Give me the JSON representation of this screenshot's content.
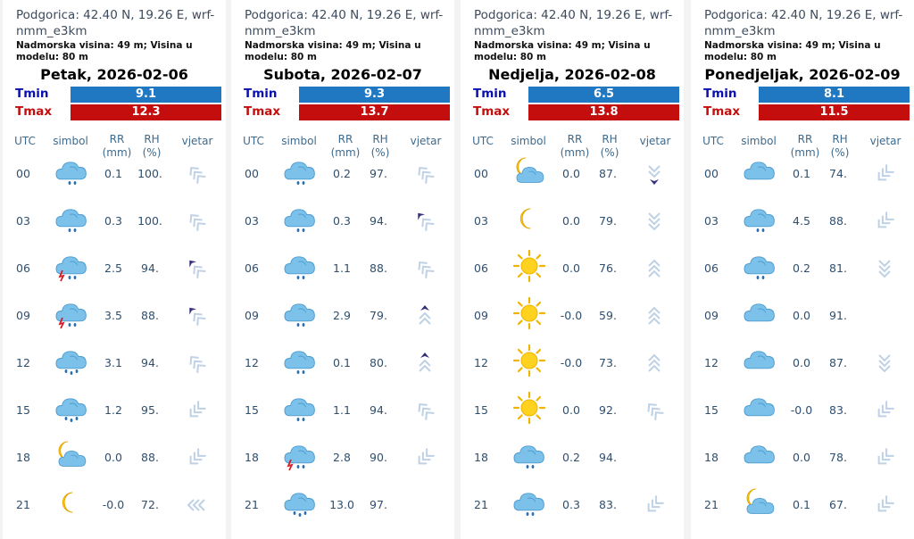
{
  "header": {
    "location": "Podgorica: 42.40 N, 19.26 E, wrf-nmm_e3km",
    "altitude": "Nadmorska visina: 49 m; Visina u modelu: 80 m"
  },
  "labels": {
    "tmin": "Tmin",
    "tmax": "Tmax"
  },
  "columns": {
    "utc": "UTC",
    "symbol": "simbol",
    "rr": "RR\n(mm)",
    "rh": "RH\n(%)",
    "wind": "vjetar"
  },
  "colors": {
    "tmin_bar": "#1f78c1",
    "tmax_bar": "#c40d0d",
    "tmin_label": "#0a10b0",
    "tmax_label": "#c40d0d",
    "wind_light": "#bfd1e5",
    "wind_dark": "#35307a"
  },
  "days": [
    {
      "date": "Petak, 2026-02-06",
      "tmin": "9.1",
      "tmax": "12.3",
      "rows": [
        {
          "utc": "00",
          "icon": "cloud-drizzle",
          "rr": "0.1",
          "rh": "100.",
          "wind": "nw-light"
        },
        {
          "utc": "03",
          "icon": "cloud-drizzle",
          "rr": "0.3",
          "rh": "100.",
          "wind": "nw-light"
        },
        {
          "utc": "06",
          "icon": "cloud-thunder-rain",
          "rr": "2.5",
          "rh": "94.",
          "wind": "nw-mixed"
        },
        {
          "utc": "09",
          "icon": "cloud-thunder-rain",
          "rr": "3.5",
          "rh": "88.",
          "wind": "nw-mixed"
        },
        {
          "utc": "12",
          "icon": "cloud-rain",
          "rr": "3.1",
          "rh": "94.",
          "wind": "nw-light"
        },
        {
          "utc": "15",
          "icon": "cloud-rain",
          "rr": "1.2",
          "rh": "95.",
          "wind": "sw-light"
        },
        {
          "utc": "18",
          "icon": "moon-cloud",
          "rr": "0.0",
          "rh": "88.",
          "wind": "sw-light"
        },
        {
          "utc": "21",
          "icon": "moon",
          "rr": "-0.0",
          "rh": "72.",
          "wind": "w-light"
        }
      ]
    },
    {
      "date": "Subota, 2026-02-07",
      "tmin": "9.3",
      "tmax": "13.7",
      "rows": [
        {
          "utc": "00",
          "icon": "cloud-drizzle",
          "rr": "0.2",
          "rh": "97.",
          "wind": "nw-light"
        },
        {
          "utc": "03",
          "icon": "cloud-drizzle",
          "rr": "0.3",
          "rh": "94.",
          "wind": "nw-mixed"
        },
        {
          "utc": "06",
          "icon": "cloud-drizzle",
          "rr": "1.1",
          "rh": "88.",
          "wind": "nw-light"
        },
        {
          "utc": "09",
          "icon": "cloud-drizzle",
          "rr": "2.9",
          "rh": "79.",
          "wind": "n-mixed"
        },
        {
          "utc": "12",
          "icon": "cloud-drizzle",
          "rr": "0.1",
          "rh": "80.",
          "wind": "n-mixed"
        },
        {
          "utc": "15",
          "icon": "cloud-drizzle",
          "rr": "1.1",
          "rh": "94.",
          "wind": "nw-light"
        },
        {
          "utc": "18",
          "icon": "cloud-thunder-rain",
          "rr": "2.8",
          "rh": "90.",
          "wind": "sw-light"
        },
        {
          "utc": "21",
          "icon": "cloud-rain",
          "rr": "13.0",
          "rh": "97.",
          "wind": ""
        }
      ]
    },
    {
      "date": "Nedjelja, 2026-02-08",
      "tmin": "6.5",
      "tmax": "13.8",
      "rows": [
        {
          "utc": "00",
          "icon": "moon-cloud",
          "rr": "0.0",
          "rh": "87.",
          "wind": "s-mixed"
        },
        {
          "utc": "03",
          "icon": "moon",
          "rr": "0.0",
          "rh": "79.",
          "wind": "s-light"
        },
        {
          "utc": "06",
          "icon": "sun",
          "rr": "0.0",
          "rh": "76.",
          "wind": "n-light"
        },
        {
          "utc": "09",
          "icon": "sun",
          "rr": "-0.0",
          "rh": "59.",
          "wind": "n-light"
        },
        {
          "utc": "12",
          "icon": "sun",
          "rr": "-0.0",
          "rh": "73.",
          "wind": "n-light"
        },
        {
          "utc": "15",
          "icon": "sun",
          "rr": "0.0",
          "rh": "92.",
          "wind": "nw-light"
        },
        {
          "utc": "18",
          "icon": "cloud-drizzle",
          "rr": "0.2",
          "rh": "94.",
          "wind": ""
        },
        {
          "utc": "21",
          "icon": "cloud-drizzle",
          "rr": "0.3",
          "rh": "83.",
          "wind": "sw-light"
        }
      ]
    },
    {
      "date": "Ponedjeljak, 2026-02-09",
      "tmin": "8.1",
      "tmax": "11.5",
      "rows": [
        {
          "utc": "00",
          "icon": "cloud",
          "rr": "0.1",
          "rh": "74.",
          "wind": "sw-light"
        },
        {
          "utc": "03",
          "icon": "cloud-drizzle",
          "rr": "4.5",
          "rh": "88.",
          "wind": "sw-light"
        },
        {
          "utc": "06",
          "icon": "cloud-drizzle",
          "rr": "0.2",
          "rh": "81.",
          "wind": "s-light"
        },
        {
          "utc": "09",
          "icon": "cloud",
          "rr": "0.0",
          "rh": "91.",
          "wind": ""
        },
        {
          "utc": "12",
          "icon": "cloud",
          "rr": "0.0",
          "rh": "87.",
          "wind": "s-light"
        },
        {
          "utc": "15",
          "icon": "cloud",
          "rr": "-0.0",
          "rh": "83.",
          "wind": "sw-light"
        },
        {
          "utc": "18",
          "icon": "cloud",
          "rr": "0.0",
          "rh": "78.",
          "wind": "sw-light"
        },
        {
          "utc": "21",
          "icon": "moon-cloud",
          "rr": "0.1",
          "rh": "67.",
          "wind": "sw-light"
        }
      ]
    }
  ]
}
